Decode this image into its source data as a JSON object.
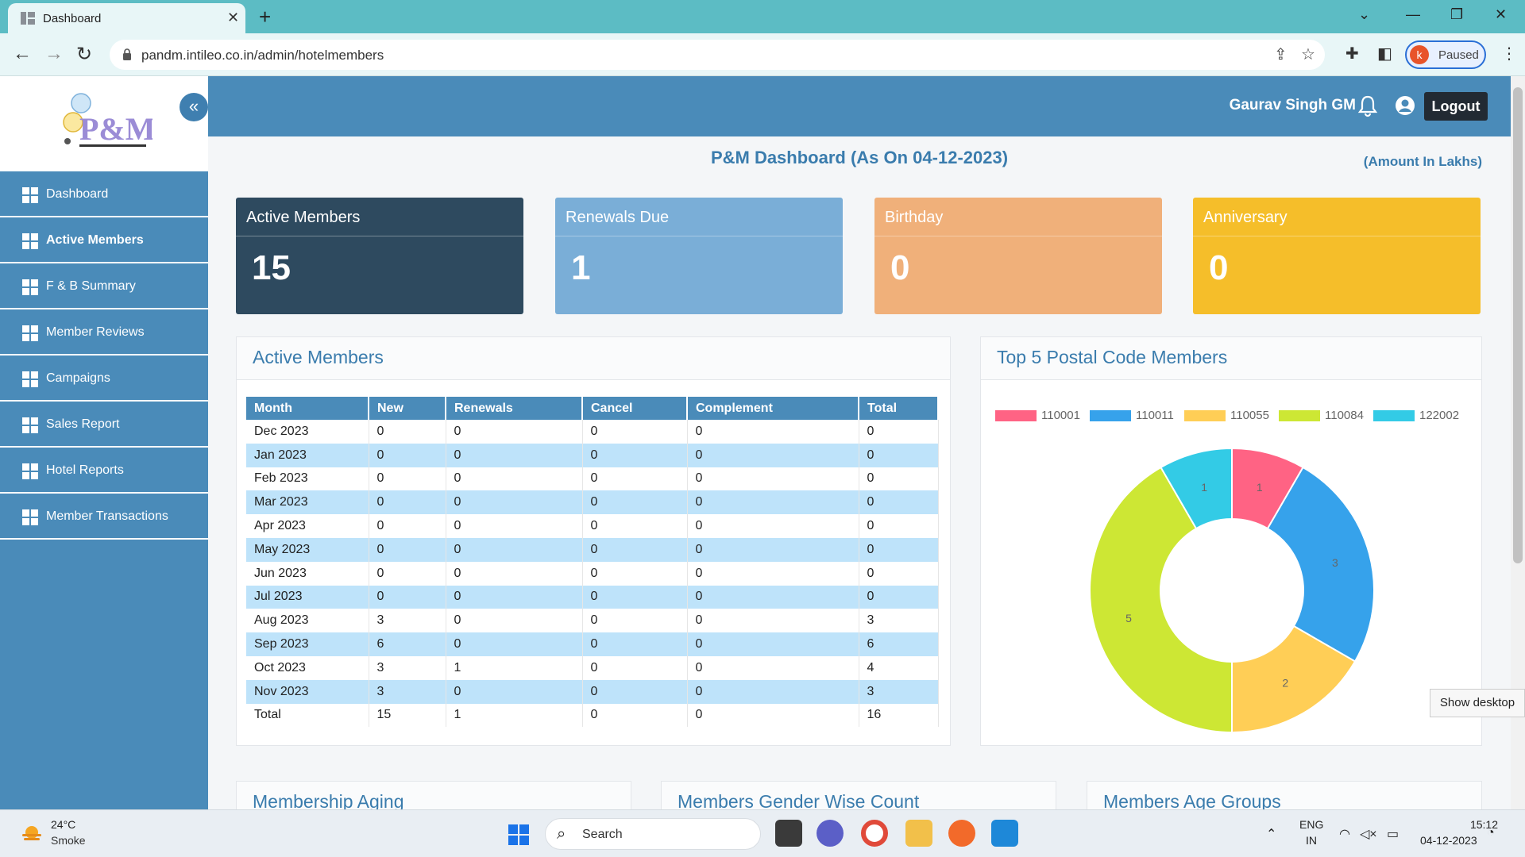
{
  "browser": {
    "tab_title": "Dashboard",
    "tab_close": "✕",
    "new_tab": "+",
    "url": "pandm.intileo.co.in/admin/hotelmembers",
    "profile_initial": "k",
    "profile_status": "Paused"
  },
  "sidebar": {
    "logo_alt": "P&M",
    "collapse_icon": "«",
    "items": [
      {
        "label": "Dashboard",
        "active": false
      },
      {
        "label": "Active Members",
        "active": true
      },
      {
        "label": "F & B Summary",
        "active": false
      },
      {
        "label": "Member Reviews",
        "active": false
      },
      {
        "label": "Campaigns",
        "active": false
      },
      {
        "label": "Sales Report",
        "active": false
      },
      {
        "label": "Hotel Reports",
        "active": false
      },
      {
        "label": "Member Transactions",
        "active": false
      }
    ]
  },
  "header": {
    "user_name": "Gaurav Singh GM",
    "logout_label": "Logout"
  },
  "dashboard": {
    "title": "P&M Dashboard (As On 04-12-2023)",
    "amount_note": "(Amount In Lakhs)",
    "cards": [
      {
        "title": "Active Members",
        "value": "15",
        "color": "#2e4a5f"
      },
      {
        "title": "Renewals Due",
        "value": "1",
        "color": "#7aaed7"
      },
      {
        "title": "Birthday",
        "value": "0",
        "color": "#f0b07a"
      },
      {
        "title": "Anniversary",
        "value": "0",
        "color": "#f5be2a"
      }
    ]
  },
  "active_members_panel": {
    "title": "Active Members",
    "columns": [
      "Month",
      "New",
      "Renewals",
      "Cancel",
      "Complement",
      "Total"
    ],
    "rows": [
      [
        "Dec 2023",
        "0",
        "0",
        "0",
        "0",
        "0"
      ],
      [
        "Jan 2023",
        "0",
        "0",
        "0",
        "0",
        "0"
      ],
      [
        "Feb 2023",
        "0",
        "0",
        "0",
        "0",
        "0"
      ],
      [
        "Mar 2023",
        "0",
        "0",
        "0",
        "0",
        "0"
      ],
      [
        "Apr 2023",
        "0",
        "0",
        "0",
        "0",
        "0"
      ],
      [
        "May 2023",
        "0",
        "0",
        "0",
        "0",
        "0"
      ],
      [
        "Jun 2023",
        "0",
        "0",
        "0",
        "0",
        "0"
      ],
      [
        "Jul 2023",
        "0",
        "0",
        "0",
        "0",
        "0"
      ],
      [
        "Aug 2023",
        "3",
        "0",
        "0",
        "0",
        "3"
      ],
      [
        "Sep 2023",
        "6",
        "0",
        "0",
        "0",
        "6"
      ],
      [
        "Oct 2023",
        "3",
        "1",
        "0",
        "0",
        "4"
      ],
      [
        "Nov 2023",
        "3",
        "0",
        "0",
        "0",
        "3"
      ],
      [
        "Total",
        "15",
        "1",
        "0",
        "0",
        "16"
      ]
    ]
  },
  "postal_panel": {
    "title": "Top 5 Postal Code Members"
  },
  "chart_data": {
    "type": "pie",
    "donut": true,
    "title": "",
    "legend_placement": "top",
    "categories": [
      "110001",
      "110011",
      "110055",
      "110084",
      "122002"
    ],
    "values": [
      1,
      3,
      2,
      5,
      1
    ],
    "colors": [
      "#ff6384",
      "#36a2eb",
      "#ffce56",
      "#cde734",
      "#33cbe6"
    ]
  },
  "lower_panels": [
    {
      "title": "Membership Aging"
    },
    {
      "title": "Members Gender Wise Count"
    },
    {
      "title": "Members Age Groups"
    }
  ],
  "show_desktop": "Show desktop",
  "taskbar": {
    "weather_temp": "24°C",
    "weather_desc": "Smoke",
    "search_label": "Search",
    "lang_line1": "ENG",
    "lang_line2": "IN",
    "time": "15:12",
    "date": "04-12-2023"
  }
}
